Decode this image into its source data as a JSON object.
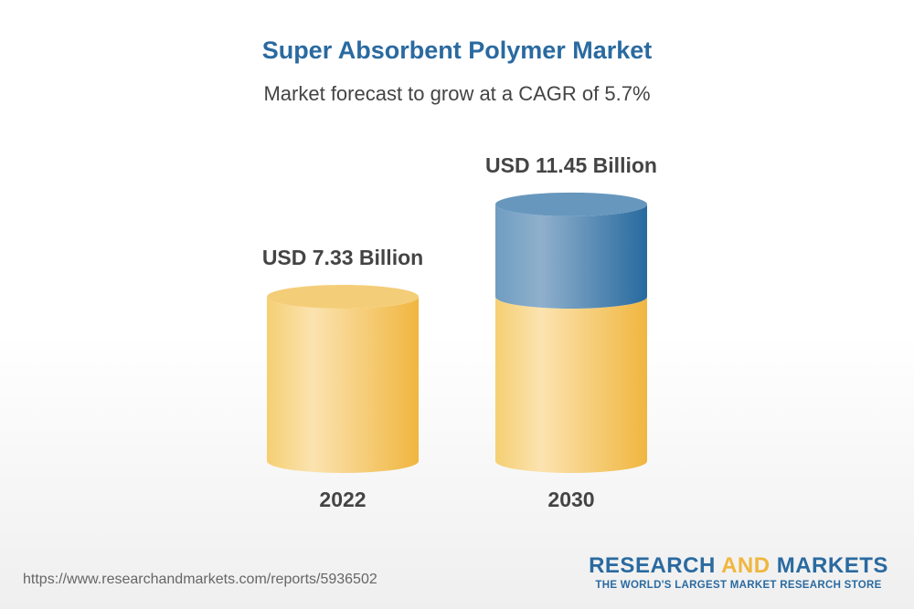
{
  "chart_data": {
    "type": "bar",
    "title": "Super Absorbent Polymer Market",
    "subtitle": "Market forecast to grow at a CAGR of 5.7%",
    "categories": [
      "2022",
      "2030"
    ],
    "values": [
      7.33,
      11.45
    ],
    "data_labels": [
      "USD 7.33 Billion",
      "USD 11.45 Billion"
    ],
    "xlabel": "",
    "ylabel": "",
    "style": "3d-cylinder",
    "grid": false,
    "colors": {
      "base": "#f3c451",
      "growth": "#2c6a9e"
    }
  },
  "footer": {
    "url": "https://www.researchandmarkets.com/reports/5936502",
    "logo": {
      "part1": "RESEARCH ",
      "part2": "AND",
      "part3": " MARKETS",
      "tagline": "THE WORLD'S LARGEST MARKET RESEARCH STORE"
    }
  }
}
